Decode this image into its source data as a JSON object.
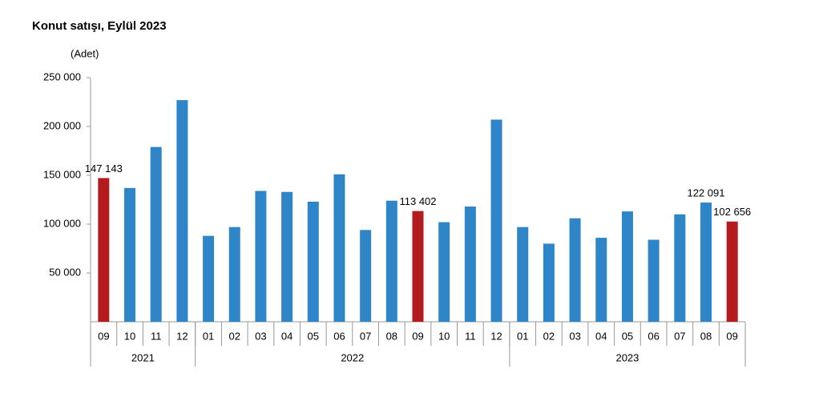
{
  "chart_data": {
    "type": "bar",
    "title": "Konut satışı, Eylül 2023",
    "y_label": "(Adet)",
    "categories": [
      "09",
      "10",
      "11",
      "12",
      "01",
      "02",
      "03",
      "04",
      "05",
      "06",
      "07",
      "08",
      "09",
      "10",
      "11",
      "12",
      "01",
      "02",
      "03",
      "04",
      "05",
      "06",
      "07",
      "08",
      "09"
    ],
    "category_groups": [
      "2021",
      "2021",
      "2021",
      "2021",
      "2022",
      "2022",
      "2022",
      "2022",
      "2022",
      "2022",
      "2022",
      "2022",
      "2022",
      "2022",
      "2022",
      "2022",
      "2023",
      "2023",
      "2023",
      "2023",
      "2023",
      "2023",
      "2023",
      "2023",
      "2023"
    ],
    "values": [
      147143,
      137000,
      179000,
      227000,
      88000,
      97000,
      134000,
      133000,
      123000,
      151000,
      94000,
      124000,
      113402,
      102000,
      118000,
      207000,
      97000,
      80000,
      106000,
      86000,
      113000,
      84000,
      110000,
      122091,
      102656
    ],
    "value_labels": [
      "147 143",
      null,
      null,
      null,
      null,
      null,
      null,
      null,
      null,
      null,
      null,
      null,
      "113 402",
      null,
      null,
      null,
      null,
      null,
      null,
      null,
      null,
      null,
      null,
      "122 091",
      "102 656"
    ],
    "colors": [
      "#b31b1e",
      "#2e86c8",
      "#2e86c8",
      "#2e86c8",
      "#2e86c8",
      "#2e86c8",
      "#2e86c8",
      "#2e86c8",
      "#2e86c8",
      "#2e86c8",
      "#2e86c8",
      "#2e86c8",
      "#b31b1e",
      "#2e86c8",
      "#2e86c8",
      "#2e86c8",
      "#2e86c8",
      "#2e86c8",
      "#2e86c8",
      "#2e86c8",
      "#2e86c8",
      "#2e86c8",
      "#2e86c8",
      "#2e86c8",
      "#b31b1e"
    ],
    "ylim": [
      0,
      250000
    ],
    "yticks": [
      {
        "value": 50000,
        "label": "50 000"
      },
      {
        "value": 100000,
        "label": "100 000"
      },
      {
        "value": 150000,
        "label": "150 000"
      },
      {
        "value": 200000,
        "label": "200 000"
      },
      {
        "value": 250000,
        "label": "250 000"
      }
    ]
  }
}
